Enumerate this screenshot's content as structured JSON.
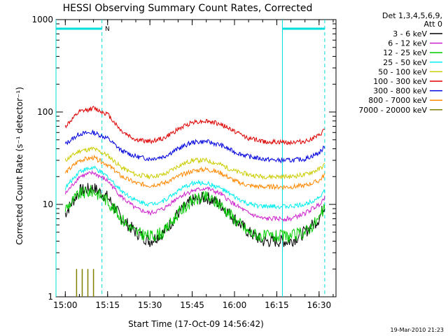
{
  "chart_data": {
    "type": "line",
    "title": "HESSI Observing Summary Count Rates, Corrected",
    "xlabel": "Start Time (17-Oct-09 14:56:42)",
    "ylabel": "Corrected Count Rate (s⁻¹ detector⁻¹)",
    "yscale": "log",
    "ylim": [
      1,
      1000
    ],
    "y_tick_labels": [
      "1",
      "10",
      "100",
      "1000"
    ],
    "x_tick_labels": [
      "15:00",
      "15:15",
      "15:30",
      "15:45",
      "16:00",
      "16:15",
      "16:30"
    ],
    "legend_header": [
      "Det 1,3,4,5,6,9,",
      "Att 0"
    ],
    "legend_position": "right",
    "timestamp": "19-Mar-2010 21:23",
    "night_marker": "N",
    "series": [
      {
        "name": "3 - 6 keV",
        "color": "#000000",
        "x": [
          "15:00",
          "15:05",
          "15:10",
          "15:15",
          "15:20",
          "15:25",
          "15:30",
          "15:35",
          "15:40",
          "15:45",
          "15:50",
          "15:55",
          "16:00",
          "16:05",
          "16:10",
          "16:15",
          "16:20",
          "16:25",
          "16:30",
          "16:32"
        ],
        "y": [
          8,
          14,
          15,
          12,
          7,
          5,
          4,
          5,
          8,
          11,
          12,
          10,
          7,
          5,
          4,
          4,
          4,
          5,
          7,
          10
        ]
      },
      {
        "name": "6 - 12 keV",
        "color": "#cc22cc",
        "x": [
          "15:00",
          "15:05",
          "15:10",
          "15:15",
          "15:20",
          "15:25",
          "15:30",
          "15:35",
          "15:40",
          "15:45",
          "15:50",
          "15:55",
          "16:00",
          "16:05",
          "16:10",
          "16:15",
          "16:20",
          "16:25",
          "16:30",
          "16:32"
        ],
        "y": [
          13,
          20,
          22,
          18,
          12,
          9,
          8,
          9,
          12,
          14,
          15,
          13,
          10,
          8,
          7,
          7,
          7,
          8,
          10,
          12
        ]
      },
      {
        "name": "12 - 25 keV",
        "color": "#00cc00",
        "x": [
          "15:00",
          "15:05",
          "15:10",
          "15:15",
          "15:20",
          "15:25",
          "15:30",
          "15:35",
          "15:40",
          "15:45",
          "15:50",
          "15:55",
          "16:00",
          "16:05",
          "16:10",
          "16:15",
          "16:20",
          "16:25",
          "16:30",
          "16:32"
        ],
        "y": [
          9,
          13,
          14,
          11,
          7,
          5,
          4.5,
          5,
          8,
          11,
          12,
          10,
          7,
          5,
          4.5,
          4.5,
          4.5,
          5,
          7,
          9
        ]
      },
      {
        "name": "25 - 50 keV",
        "color": "#00eeee",
        "x": [
          "15:00",
          "15:05",
          "15:10",
          "15:15",
          "15:20",
          "15:25",
          "15:30",
          "15:35",
          "15:40",
          "15:45",
          "15:50",
          "15:55",
          "16:00",
          "16:05",
          "16:10",
          "16:15",
          "16:20",
          "16:25",
          "16:30",
          "16:32"
        ],
        "y": [
          15,
          23,
          25,
          20,
          14,
          11,
          10,
          11,
          14,
          17,
          17,
          15,
          12,
          10,
          9.5,
          9.5,
          9.5,
          10,
          12,
          14
        ]
      },
      {
        "name": "50 - 100 keV",
        "color": "#cccc00",
        "x": [
          "15:00",
          "15:05",
          "15:10",
          "15:15",
          "15:20",
          "15:25",
          "15:30",
          "15:35",
          "15:40",
          "15:45",
          "15:50",
          "15:55",
          "16:00",
          "16:05",
          "16:10",
          "16:15",
          "16:20",
          "16:25",
          "16:30",
          "16:32"
        ],
        "y": [
          30,
          38,
          40,
          34,
          25,
          21,
          20,
          21,
          26,
          30,
          30,
          27,
          23,
          21,
          20,
          20,
          20,
          21,
          24,
          27
        ]
      },
      {
        "name": "100 - 300 keV",
        "color": "#dd0000",
        "x": [
          "15:00",
          "15:05",
          "15:10",
          "15:15",
          "15:20",
          "15:25",
          "15:30",
          "15:35",
          "15:40",
          "15:45",
          "15:50",
          "15:55",
          "16:00",
          "16:05",
          "16:10",
          "16:15",
          "16:20",
          "16:25",
          "16:30",
          "16:32"
        ],
        "y": [
          70,
          100,
          110,
          95,
          62,
          50,
          48,
          52,
          65,
          78,
          80,
          74,
          62,
          52,
          48,
          47,
          47,
          48,
          55,
          65
        ]
      },
      {
        "name": "300 - 800 keV",
        "color": "#0000dd",
        "x": [
          "15:00",
          "15:05",
          "15:10",
          "15:15",
          "15:20",
          "15:25",
          "15:30",
          "15:35",
          "15:40",
          "15:45",
          "15:50",
          "15:55",
          "16:00",
          "16:05",
          "16:10",
          "16:15",
          "16:20",
          "16:25",
          "16:30",
          "16:32"
        ],
        "y": [
          45,
          58,
          60,
          52,
          38,
          33,
          31,
          33,
          40,
          47,
          48,
          44,
          37,
          33,
          31,
          30,
          30,
          31,
          36,
          42
        ]
      },
      {
        "name": "800 - 7000 keV",
        "color": "#ff8800",
        "x": [
          "15:00",
          "15:05",
          "15:10",
          "15:15",
          "15:20",
          "15:25",
          "15:30",
          "15:35",
          "15:40",
          "15:45",
          "15:50",
          "15:55",
          "16:00",
          "16:05",
          "16:10",
          "16:15",
          "16:20",
          "16:25",
          "16:30",
          "16:32"
        ],
        "y": [
          22,
          30,
          32,
          27,
          20,
          17,
          16,
          17,
          20,
          23,
          24,
          22,
          18,
          16,
          15.5,
          15.5,
          15.5,
          16,
          18,
          21
        ]
      },
      {
        "name": "7000 - 20000 keV",
        "color": "#808000",
        "x": [
          "15:03",
          "15:04",
          "15:05",
          "15:06",
          "15:07",
          "15:08",
          "15:09",
          "15:10"
        ],
        "y": [
          1,
          2,
          1,
          2,
          1,
          2,
          1,
          2
        ]
      }
    ],
    "night_intervals": [
      {
        "start": "14:56:42",
        "end": "15:13"
      },
      {
        "start": "16:17",
        "end": "16:32"
      }
    ]
  },
  "colors": {
    "axis": "#000000",
    "marker_line": "#00dddd"
  }
}
